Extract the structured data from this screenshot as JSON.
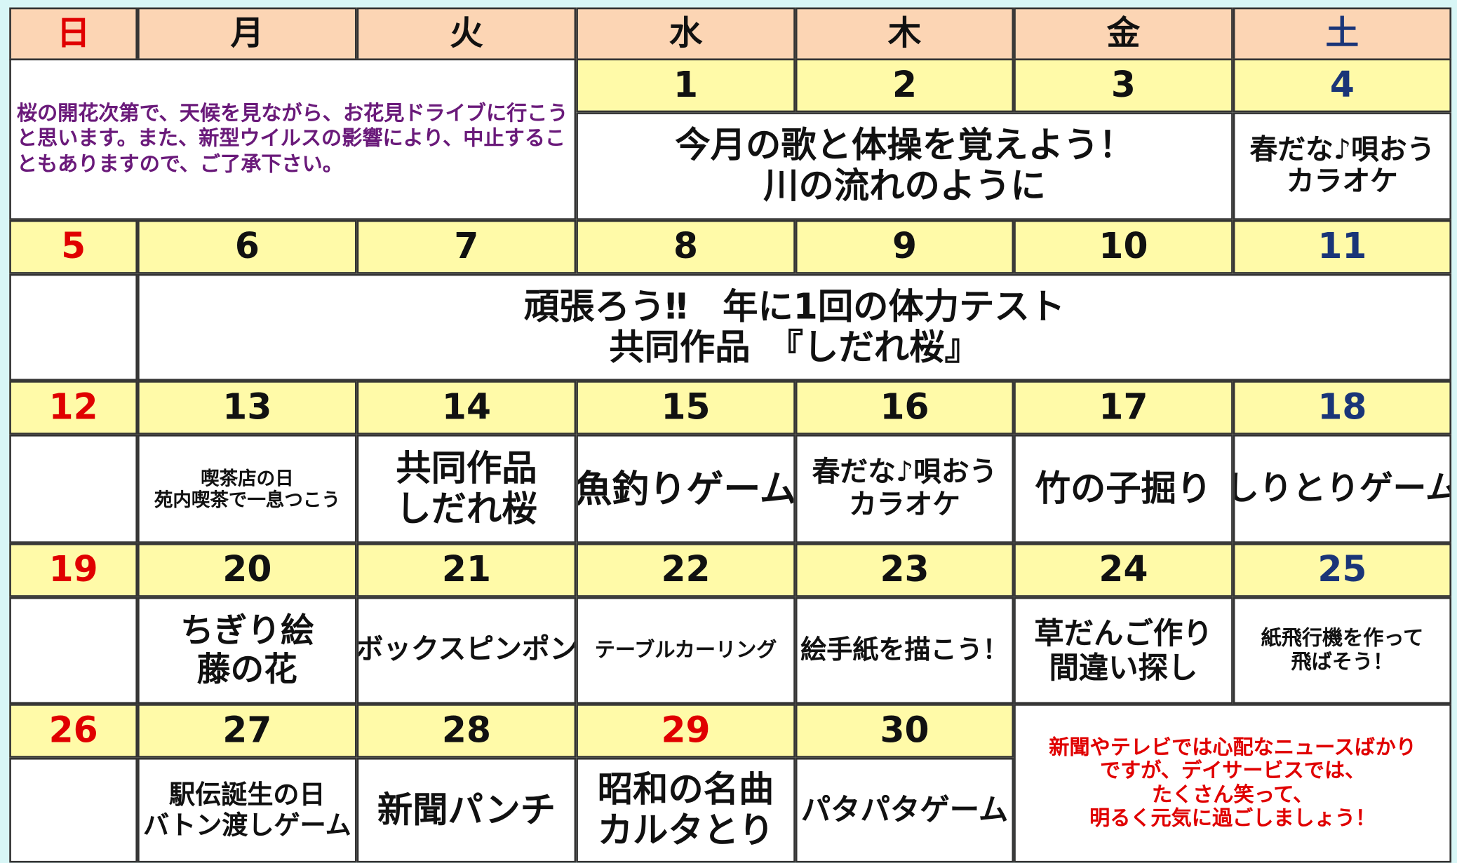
{
  "header": {
    "days": [
      "日",
      "月",
      "火",
      "水",
      "木",
      "金",
      "土"
    ]
  },
  "notice": "桜の開花次第で、天候を見ながら、お花見ドライブに行こうと思います。また、新型ウイルスの影響により、中止することもありますので、ご了承下さい。",
  "weeks": [
    {
      "dates": [
        1,
        2,
        3,
        4
      ],
      "events": [
        {
          "lines": [
            "今月の歌と体操を覚えよう！",
            "川の流れのように"
          ]
        },
        {
          "lines": [
            "春だな♪唄おう",
            "カラオケ"
          ]
        }
      ]
    },
    {
      "dates": [
        5,
        6,
        7,
        8,
        9,
        10,
        11
      ],
      "events": [
        {
          "lines": [
            "頑張ろう‼　年に1回の体力テスト",
            "共同作品　『しだれ桜』"
          ]
        }
      ]
    },
    {
      "dates": [
        12,
        13,
        14,
        15,
        16,
        17,
        18
      ],
      "events": [
        {
          "lines": [
            "喫茶店の日",
            "苑内喫茶で一息つこう"
          ]
        },
        {
          "lines": [
            "共同作品",
            "しだれ桜"
          ]
        },
        {
          "lines": [
            "魚釣りゲーム"
          ]
        },
        {
          "lines": [
            "春だな♪唄おう",
            "カラオケ"
          ]
        },
        {
          "lines": [
            "竹の子掘り"
          ]
        },
        {
          "lines": [
            "しりとりゲーム"
          ]
        }
      ]
    },
    {
      "dates": [
        19,
        20,
        21,
        22,
        23,
        24,
        25
      ],
      "events": [
        {
          "lines": [
            "ちぎり絵",
            "藤の花"
          ]
        },
        {
          "lines": [
            "ボックスピンポン"
          ]
        },
        {
          "lines": [
            "テーブルカーリング"
          ]
        },
        {
          "lines": [
            "絵手紙を描こう！"
          ]
        },
        {
          "lines": [
            "草だんご作り",
            "間違い探し"
          ]
        },
        {
          "lines": [
            "紙飛行機を作って",
            "飛ばそう！"
          ]
        }
      ]
    },
    {
      "dates": [
        26,
        27,
        28,
        29,
        30
      ],
      "events": [
        {
          "lines": [
            "駅伝誕生の日",
            "バトン渡しゲーム"
          ]
        },
        {
          "lines": [
            "新聞パンチ"
          ]
        },
        {
          "lines": [
            "昭和の名曲",
            "カルタとり"
          ]
        },
        {
          "lines": [
            "パタパタゲーム"
          ]
        }
      ]
    }
  ],
  "message": {
    "lines": [
      "新聞やテレビでは心配なニュースばかり",
      "ですが、デイサービスでは、",
      "たくさん笑って、",
      "明るく元気に過ごしましょう！"
    ]
  }
}
